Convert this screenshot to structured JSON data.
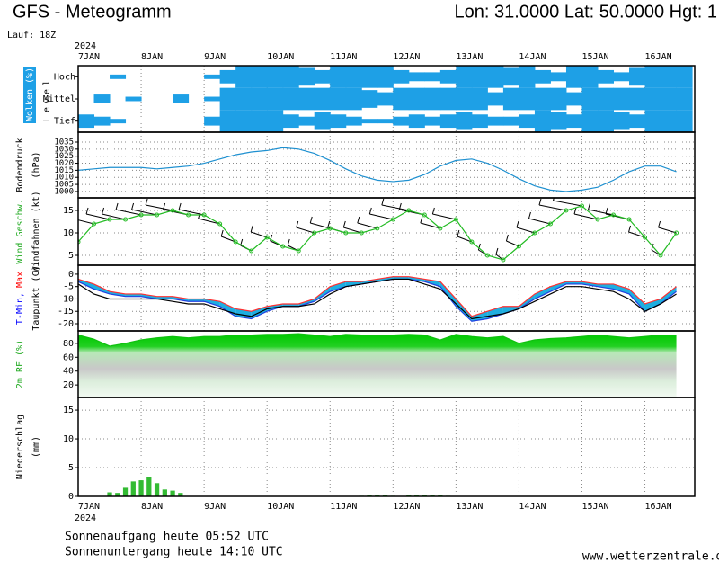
{
  "header": {
    "title": "GFS - Meteogramm",
    "location": "Lon: 31.0000 Lat: 50.0000 Hgt: 1",
    "run": "Lauf: 18Z"
  },
  "time_axis": {
    "year": "2024",
    "xlim": [
      0,
      235
    ],
    "xticks": [
      {
        "value": 0,
        "label": "7JAN"
      },
      {
        "value": 24,
        "label": "8JAN"
      },
      {
        "value": 48,
        "label": "9JAN"
      },
      {
        "value": 72,
        "label": "10JAN"
      },
      {
        "value": 96,
        "label": "11JAN"
      },
      {
        "value": 120,
        "label": "12JAN"
      },
      {
        "value": 144,
        "label": "13JAN"
      },
      {
        "value": 168,
        "label": "14JAN"
      },
      {
        "value": 192,
        "label": "15JAN"
      },
      {
        "value": 216,
        "label": "16JAN"
      }
    ]
  },
  "chart_data": [
    {
      "type": "cover",
      "color": "#1ea0e6",
      "cell": 6,
      "ylabel": [
        [
          {
            "text": "Wolken (%)",
            "color": "#ffffff",
            "bg": "#1ea0e6"
          }
        ],
        [
          {
            "text": "Level",
            "color": "#000000"
          }
        ]
      ],
      "x": [
        0,
        6,
        12,
        18,
        24,
        30,
        36,
        42,
        48,
        54,
        60,
        66,
        72,
        78,
        84,
        90,
        96,
        102,
        108,
        114,
        120,
        126,
        132,
        138,
        144,
        150,
        156,
        162,
        168,
        174,
        180,
        186,
        192,
        198,
        204,
        210,
        216,
        222,
        228
      ],
      "series": [
        {
          "name": "Hoch",
          "values": [
            0,
            0,
            20,
            0,
            0,
            0,
            0,
            0,
            20,
            60,
            100,
            100,
            100,
            100,
            80,
            60,
            100,
            100,
            100,
            100,
            60,
            40,
            40,
            60,
            100,
            100,
            100,
            80,
            100,
            60,
            40,
            100,
            100,
            60,
            40,
            80,
            100,
            100,
            100
          ]
        },
        {
          "name": "Mittel",
          "values": [
            0,
            40,
            0,
            20,
            0,
            0,
            40,
            0,
            20,
            100,
            100,
            100,
            100,
            100,
            100,
            100,
            100,
            100,
            80,
            60,
            100,
            100,
            100,
            100,
            100,
            100,
            60,
            100,
            100,
            100,
            100,
            60,
            100,
            100,
            100,
            100,
            100,
            100,
            100
          ]
        },
        {
          "name": "Tief",
          "values": [
            60,
            40,
            20,
            0,
            0,
            0,
            0,
            0,
            40,
            100,
            100,
            100,
            100,
            60,
            40,
            80,
            60,
            40,
            20,
            20,
            40,
            60,
            40,
            60,
            80,
            60,
            40,
            40,
            60,
            100,
            80,
            60,
            100,
            100,
            80,
            60,
            100,
            100,
            100
          ]
        }
      ]
    },
    {
      "type": "line",
      "grid": true,
      "ylim": [
        995.5,
        1042
      ],
      "yticks": [
        1000,
        1005,
        1010,
        1015,
        1020,
        1025,
        1030,
        1035
      ],
      "ylabel": [
        [
          {
            "text": "Bodendruck",
            "color": "#000000"
          }
        ],
        [
          {
            "text": "(hPa)",
            "color": "#000000"
          }
        ]
      ],
      "x": [
        0,
        6,
        12,
        18,
        24,
        30,
        36,
        42,
        48,
        54,
        60,
        66,
        72,
        78,
        84,
        90,
        96,
        102,
        108,
        114,
        120,
        126,
        132,
        138,
        144,
        150,
        156,
        162,
        168,
        174,
        180,
        186,
        192,
        198,
        204,
        210,
        216,
        222,
        228
      ],
      "series": [
        {
          "color": "#1e90d0",
          "values": [
            1015,
            1016,
            1017,
            1017,
            1017,
            1016,
            1017,
            1018,
            1020,
            1023,
            1026,
            1028,
            1029,
            1031,
            1030,
            1027,
            1022,
            1016,
            1011,
            1008,
            1007,
            1008,
            1012,
            1018,
            1022,
            1023,
            1020,
            1015,
            1009,
            1004,
            1001,
            1000,
            1001,
            1003,
            1008,
            1014,
            1018,
            1018,
            1014
          ]
        }
      ]
    },
    {
      "type": "line",
      "grid": true,
      "markers": true,
      "barbs": true,
      "ylim": [
        2.8,
        17.8
      ],
      "yticks": [
        5,
        10,
        15
      ],
      "ylabel": [
        [
          {
            "text": "Wind Geschw.",
            "color": "#22aa22"
          }
        ],
        [
          {
            "text": "Windfahnen (kt)",
            "color": "#000000"
          }
        ]
      ],
      "x": [
        0,
        6,
        12,
        18,
        24,
        30,
        36,
        42,
        48,
        54,
        60,
        66,
        72,
        78,
        84,
        90,
        96,
        102,
        108,
        114,
        120,
        126,
        132,
        138,
        144,
        150,
        156,
        162,
        168,
        174,
        180,
        186,
        192,
        198,
        204,
        210,
        216,
        222,
        228
      ],
      "series": [
        {
          "color": "#22bb22",
          "values": [
            8,
            12,
            13,
            13,
            14,
            14,
            15,
            14,
            14,
            12,
            8,
            6,
            9,
            7,
            6,
            10,
            11,
            10,
            10,
            11,
            13,
            15,
            14,
            11,
            13,
            8,
            5,
            4,
            7,
            10,
            12,
            15,
            16,
            13,
            14,
            13,
            9,
            5,
            10
          ]
        }
      ]
    },
    {
      "type": "band",
      "grid": true,
      "ylim": [
        -22.9,
        3.6
      ],
      "fill": "#1eaee0",
      "yticks": [
        0,
        -5,
        -10,
        -15,
        -20
      ],
      "ylabel": [
        [
          {
            "text": "T-Min,",
            "color": "#0000ff"
          },
          {
            "text": "Max",
            "color": "#ff0000"
          }
        ],
        [
          {
            "text": "Taupunkt (C)",
            "color": "#000000"
          }
        ]
      ],
      "x": [
        0,
        6,
        12,
        18,
        24,
        30,
        36,
        42,
        48,
        54,
        60,
        66,
        72,
        78,
        84,
        90,
        96,
        102,
        108,
        114,
        120,
        126,
        132,
        138,
        144,
        150,
        156,
        162,
        168,
        174,
        180,
        186,
        192,
        198,
        204,
        210,
        216,
        222,
        228
      ],
      "series": [
        {
          "name": "Max",
          "color": "#ff3030",
          "values": [
            -2,
            -4,
            -7,
            -8,
            -8,
            -9,
            -9,
            -10,
            -10,
            -11,
            -14,
            -15,
            -13,
            -12,
            -12,
            -10,
            -5,
            -3,
            -3,
            -2,
            -1,
            -1,
            -2,
            -3,
            -10,
            -17,
            -15,
            -13,
            -13,
            -8,
            -5,
            -3,
            -3,
            -4,
            -4,
            -6,
            -12,
            -10,
            -5
          ]
        },
        {
          "name": "Min",
          "color": "#2040e0",
          "values": [
            -3,
            -6,
            -8,
            -9,
            -9,
            -10,
            -10,
            -11,
            -11,
            -13,
            -17,
            -18,
            -15,
            -13,
            -13,
            -11,
            -7,
            -5,
            -4,
            -3,
            -2,
            -2,
            -3,
            -5,
            -13,
            -19,
            -18,
            -16,
            -14,
            -10,
            -7,
            -4,
            -4,
            -5,
            -6,
            -8,
            -15,
            -12,
            -7
          ]
        },
        {
          "name": "Taupunkt",
          "color": "#000000",
          "values": [
            -4,
            -8,
            -10,
            -10,
            -10,
            -10,
            -11,
            -12,
            -12,
            -14,
            -16,
            -17,
            -14,
            -13,
            -13,
            -12,
            -8,
            -5,
            -4,
            -3,
            -2,
            -2,
            -4,
            -6,
            -12,
            -18,
            -17,
            -16,
            -14,
            -11,
            -8,
            -5,
            -5,
            -6,
            -7,
            -10,
            -15,
            -12,
            -8
          ]
        }
      ]
    },
    {
      "type": "area",
      "grid": false,
      "ylim": [
        2,
        98
      ],
      "yticks": [
        20,
        40,
        60,
        80
      ],
      "ylabel": [
        [
          {
            "text": "2m RF (%)",
            "color": "#22aa22"
          }
        ]
      ],
      "x": [
        0,
        6,
        12,
        18,
        24,
        30,
        36,
        42,
        48,
        54,
        60,
        66,
        72,
        78,
        84,
        90,
        96,
        102,
        108,
        114,
        120,
        126,
        132,
        138,
        144,
        150,
        156,
        162,
        168,
        174,
        180,
        186,
        192,
        198,
        204,
        210,
        216,
        222,
        228
      ],
      "series": [
        {
          "color": "#10c010",
          "values": [
            92,
            86,
            76,
            80,
            85,
            88,
            90,
            88,
            90,
            90,
            92,
            92,
            93,
            93,
            94,
            92,
            90,
            93,
            92,
            91,
            92,
            93,
            92,
            85,
            93,
            90,
            88,
            90,
            80,
            85,
            87,
            88,
            90,
            92,
            90,
            88,
            90,
            92,
            92
          ]
        }
      ]
    },
    {
      "type": "bar",
      "grid": true,
      "ylim": [
        0,
        17.2
      ],
      "step": 3,
      "yticks": [
        0,
        5,
        10,
        15
      ],
      "ylabel": [
        [
          {
            "text": "Niederschlag",
            "color": "#000000"
          }
        ],
        [
          {
            "text": "(mm)",
            "color": "#000000"
          }
        ]
      ],
      "x": [
        12,
        15,
        18,
        21,
        24,
        27,
        30,
        33,
        36,
        39,
        108,
        111,
        114,
        117,
        120,
        126,
        129,
        132,
        135,
        138,
        141
      ],
      "series": [
        {
          "color": "#33bb33",
          "values": [
            0.7,
            0.6,
            1.5,
            2.6,
            2.8,
            3.3,
            2.3,
            1.2,
            1.0,
            0.6,
            0.1,
            0.2,
            0.3,
            0.2,
            0.1,
            0.2,
            0.3,
            0.3,
            0.2,
            0.2,
            0.1
          ]
        }
      ]
    }
  ],
  "footer": {
    "sunrise": "Sonnenaufgang heute 05:52 UTC",
    "sunset": "Sonnenuntergang heute 14:10 UTC",
    "source": "www.wetterzentrale.de"
  }
}
